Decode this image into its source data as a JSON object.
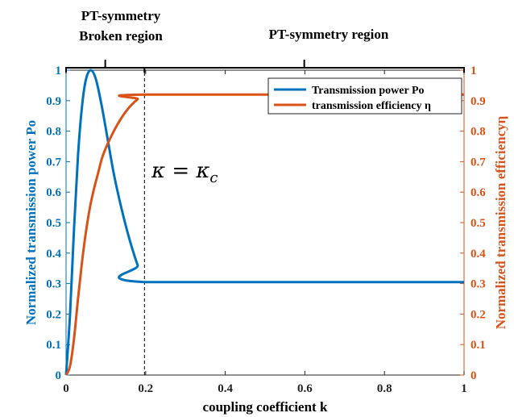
{
  "chart_data": {
    "type": "line",
    "xlabel": "coupling coefficient k",
    "ylabel_left": "Normalized transmission power Po",
    "ylabel_right": "Normalized transmission efficiencyη",
    "xlim": [
      0,
      1
    ],
    "ylim": [
      0,
      1
    ],
    "x_ticks": [
      "0",
      "0.2",
      "0.4",
      "0.6",
      "0.8",
      "1"
    ],
    "y_ticks": [
      "0",
      "0.1",
      "0.2",
      "0.3",
      "0.4",
      "0.5",
      "0.6",
      "0.7",
      "0.8",
      "0.9",
      "1"
    ],
    "grid": false,
    "legend_position": "top-right",
    "series": [
      {
        "name": "Transmission power Po",
        "color": "#0072BD",
        "axis": "left",
        "x": [
          0,
          0.01,
          0.02,
          0.03,
          0.04,
          0.05,
          0.062,
          0.075,
          0.09,
          0.105,
          0.12,
          0.135,
          0.15,
          0.165,
          0.18,
          0.197,
          1
        ],
        "y": [
          0,
          0.2,
          0.48,
          0.72,
          0.88,
          0.97,
          1.0,
          0.97,
          0.88,
          0.77,
          0.66,
          0.57,
          0.49,
          0.42,
          0.36,
          0.305,
          0.305
        ]
      },
      {
        "name": "transmission efficiency η",
        "color": "#D95319",
        "axis": "right",
        "x": [
          0,
          0.01,
          0.02,
          0.03,
          0.04,
          0.05,
          0.06,
          0.07,
          0.08,
          0.09,
          0.1,
          0.12,
          0.14,
          0.16,
          0.18,
          0.197,
          1
        ],
        "y": [
          0,
          0.03,
          0.12,
          0.25,
          0.37,
          0.47,
          0.55,
          0.61,
          0.66,
          0.71,
          0.745,
          0.8,
          0.845,
          0.88,
          0.905,
          0.92,
          0.92
        ]
      }
    ],
    "annotations": {
      "critical_k": 0.197,
      "critical_label": "κ = κ",
      "critical_label_sub": "c",
      "broken_region_line1": "PT-symmetry",
      "broken_region_line2": "Broken region",
      "symmetry_region": "PT-symmetry region"
    }
  }
}
